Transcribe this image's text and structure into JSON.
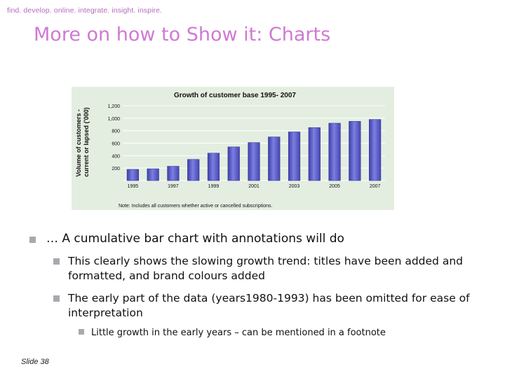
{
  "header": {
    "tagline": "find. develop. online. integrate. insight. inspire.",
    "title": "More on how to Show it: Charts"
  },
  "chart_data": {
    "type": "bar",
    "title": "Growth of customer base 1995- 2007",
    "ylabel": "Volume of customers - current or lapsed ('000)",
    "xlabel": "",
    "ylim": [
      0,
      1200
    ],
    "y_ticks": [
      "1,200",
      "1,000",
      "800",
      "600",
      "400",
      "200"
    ],
    "categories": [
      "1995",
      "1996",
      "1997",
      "1998",
      "1999",
      "2000",
      "2001",
      "2002",
      "2003",
      "2004",
      "2005",
      "2006",
      "2007"
    ],
    "x_tick_labels_shown": [
      "1995",
      "1997",
      "1999",
      "2001",
      "2003",
      "2005",
      "2007"
    ],
    "values": [
      180,
      190,
      230,
      340,
      440,
      540,
      610,
      700,
      780,
      850,
      920,
      950,
      980
    ],
    "note": "Note: Includes all customers whether active or cancelled subscriptions.",
    "grid": true,
    "bar_color": "#5c5ec2",
    "background_color": "#e3eee1"
  },
  "bullets": {
    "main": "… A cumulative bar chart with annotations will do",
    "sub1": "This clearly shows the slowing growth trend: titles have been added and formatted, and brand colours added",
    "sub2": "The early part of the data (years1980-1993) has been omitted for ease of interpretation",
    "subsub1": "Little growth in the early years – can be mentioned in a footnote"
  },
  "footer": {
    "slide_label": "Slide 38"
  },
  "colors": {
    "accent": "#d079d4",
    "bullet": "#a8a8b0"
  }
}
